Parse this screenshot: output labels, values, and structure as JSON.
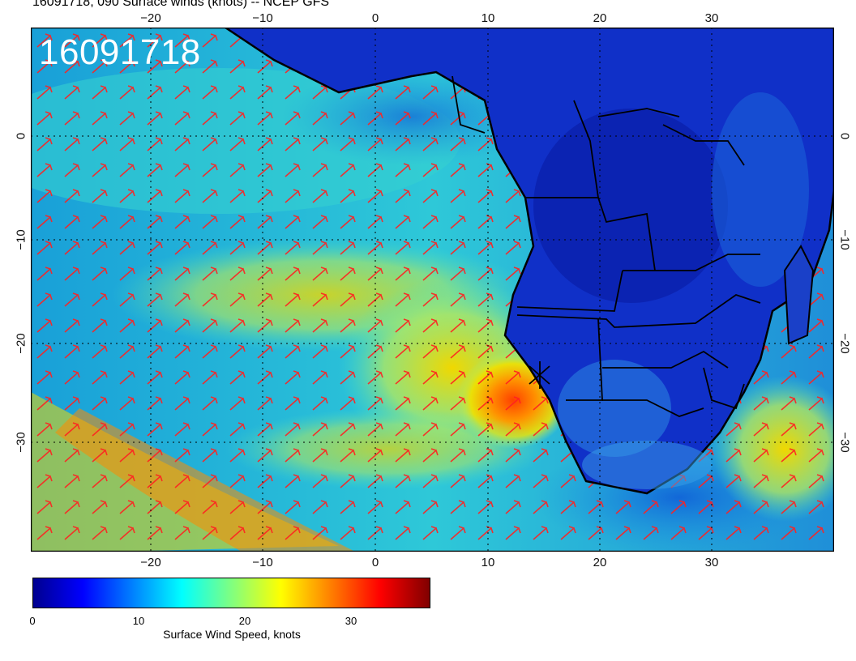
{
  "title": "16091718, 090 Surface winds (knots) -- NCEP GFS",
  "stamp": "16091718",
  "lon_ticks": [
    "−20",
    "−10",
    "0",
    "10",
    "20",
    "30"
  ],
  "lat_ticks": [
    "0",
    "−10",
    "−20",
    "−30"
  ],
  "colorbar": {
    "title": "Surface Wind Speed, knots",
    "ticks": [
      "0",
      "10",
      "20",
      "30"
    ],
    "colors": [
      "#00008f",
      "#0000ff",
      "#0080ff",
      "#00ffff",
      "#80ff80",
      "#ffff00",
      "#ff8000",
      "#ff0000",
      "#800000"
    ]
  },
  "colors": {
    "barb": "#ff2020",
    "land_outline": "#000000"
  }
}
